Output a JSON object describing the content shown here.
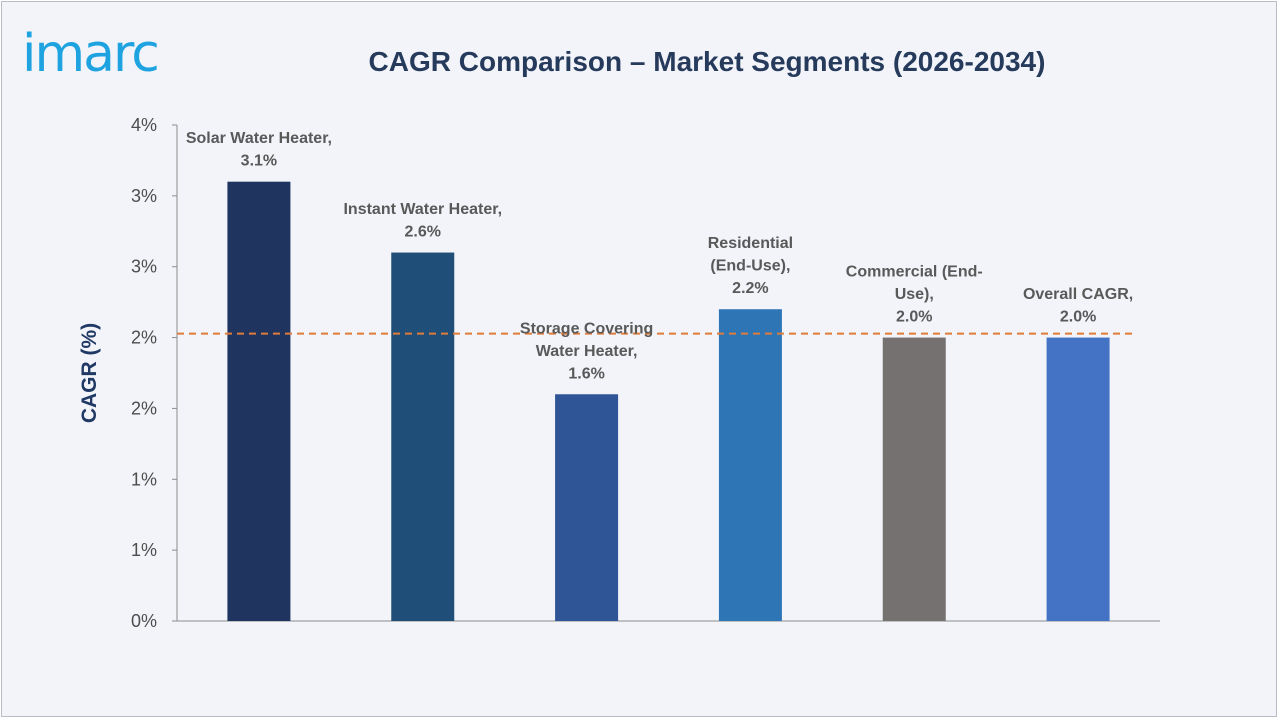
{
  "brand": {
    "logo_text": "imarc",
    "logo_color": "#1fa3e0"
  },
  "chart_data": {
    "type": "bar",
    "title": "CAGR Comparison – Market Segments (2026-2034)",
    "ylabel": "CAGR (%)",
    "xlabel": "",
    "ylim": [
      0,
      3.5
    ],
    "y_ticks": [
      {
        "value": 0.0,
        "label": "0%"
      },
      {
        "value": 0.5,
        "label": "1%"
      },
      {
        "value": 1.0,
        "label": "1%"
      },
      {
        "value": 1.5,
        "label": "2%"
      },
      {
        "value": 2.0,
        "label": "2%"
      },
      {
        "value": 2.5,
        "label": "3%"
      },
      {
        "value": 3.0,
        "label": "3%"
      },
      {
        "value": 3.5,
        "label": "4%"
      }
    ],
    "categories": [
      "Solar Water Heater",
      "Instant Water Heater",
      "Storage Covering Water Heater",
      "Residential (End-Use)",
      "Commercial (End-Use)",
      "Overall CAGR"
    ],
    "values": [
      3.1,
      2.6,
      1.6,
      2.2,
      2.0,
      2.0
    ],
    "data_labels": [
      [
        "Solar Water Heater,",
        "3.1%"
      ],
      [
        "Instant Water Heater,",
        "2.6%"
      ],
      [
        "Storage Covering",
        "Water Heater,",
        "1.6%"
      ],
      [
        "Residential",
        "(End-Use),",
        "2.2%"
      ],
      [
        "Commercial (End-",
        "Use),",
        "2.0%"
      ],
      [
        "Overall CAGR,",
        "2.0%"
      ]
    ],
    "colors": [
      "#1f3560",
      "#1f4e79",
      "#2f5597",
      "#2e75b6",
      "#767171",
      "#4472c4"
    ],
    "reference_line": {
      "value": 2.0,
      "style": "dashed",
      "color": "#e07b39"
    },
    "grid": false,
    "legend": "none"
  }
}
